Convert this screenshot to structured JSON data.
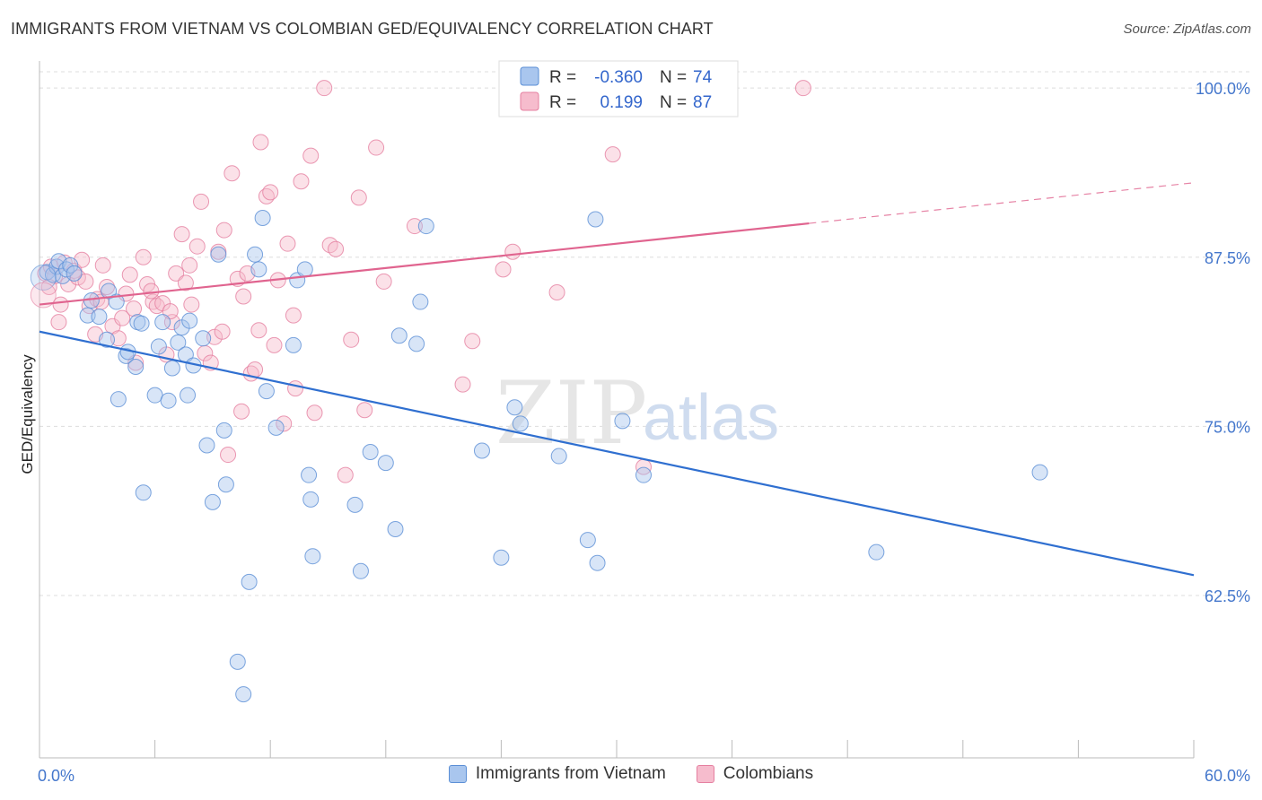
{
  "title": "IMMIGRANTS FROM VIETNAM VS COLOMBIAN GED/EQUIVALENCY CORRELATION CHART",
  "source": "Source: ZipAtlas.com",
  "watermark": {
    "zip": "ZIP",
    "atlas": "atlas"
  },
  "colors": {
    "blue_fill": "#a9c6ee",
    "blue_stroke": "#5b8fd6",
    "blue_line": "#2f6fd0",
    "pink_fill": "#f6bccd",
    "pink_stroke": "#e57fa0",
    "pink_line": "#e0648f",
    "tick_text": "#4477cc",
    "grid": "#dddddd"
  },
  "legend": {
    "r_label": "R =",
    "n_label": "N =",
    "series": [
      {
        "r": "-0.360",
        "n": "74"
      },
      {
        "r": "0.199",
        "n": "87"
      }
    ]
  },
  "chart_data": {
    "type": "scatter",
    "ylabel": "GED/Equivalency",
    "xlim": [
      0,
      60
    ],
    "ylim": [
      50.5,
      102.0
    ],
    "x_tick_labels": [
      {
        "value": 0,
        "label": "0.0%"
      },
      {
        "value": 60,
        "label": "60.0%"
      }
    ],
    "y_tick_labels": [
      {
        "value": 100,
        "label": "100.0%"
      },
      {
        "value": 87.5,
        "label": "87.5%"
      },
      {
        "value": 75,
        "label": "75.0%"
      },
      {
        "value": 62.5,
        "label": "62.5%"
      }
    ],
    "series": [
      {
        "name": "Immigrants from Vietnam",
        "color": "blue",
        "trend": {
          "x0": 0,
          "y0": 82.0,
          "x1": 60,
          "y1": 64.0
        },
        "points": [
          [
            0.4,
            86.4
          ],
          [
            0.7,
            86.2
          ],
          [
            0.9,
            86.8
          ],
          [
            1.0,
            87.2
          ],
          [
            1.2,
            86.1
          ],
          [
            1.4,
            86.6
          ],
          [
            1.6,
            86.9
          ],
          [
            1.8,
            86.3
          ],
          [
            2.5,
            83.2
          ],
          [
            2.7,
            84.3
          ],
          [
            3.1,
            83.1
          ],
          [
            3.5,
            81.4
          ],
          [
            3.6,
            85.0
          ],
          [
            4.0,
            84.2
          ],
          [
            4.1,
            77.0
          ],
          [
            4.5,
            80.2
          ],
          [
            4.6,
            80.5
          ],
          [
            5.0,
            79.4
          ],
          [
            5.1,
            82.7
          ],
          [
            5.3,
            82.6
          ],
          [
            5.4,
            70.1
          ],
          [
            6.0,
            77.3
          ],
          [
            6.2,
            80.9
          ],
          [
            6.4,
            82.7
          ],
          [
            6.7,
            76.9
          ],
          [
            6.9,
            79.3
          ],
          [
            7.2,
            81.2
          ],
          [
            7.4,
            82.3
          ],
          [
            7.6,
            80.3
          ],
          [
            7.7,
            77.3
          ],
          [
            7.8,
            82.8
          ],
          [
            8.0,
            79.5
          ],
          [
            8.5,
            81.5
          ],
          [
            8.7,
            73.6
          ],
          [
            9.0,
            69.4
          ],
          [
            9.3,
            87.7
          ],
          [
            9.6,
            74.7
          ],
          [
            9.7,
            70.7
          ],
          [
            10.3,
            57.6
          ],
          [
            10.6,
            55.2
          ],
          [
            10.9,
            63.5
          ],
          [
            11.2,
            87.7
          ],
          [
            11.4,
            86.6
          ],
          [
            11.6,
            90.4
          ],
          [
            11.8,
            77.6
          ],
          [
            12.3,
            74.9
          ],
          [
            13.2,
            81.0
          ],
          [
            13.4,
            85.8
          ],
          [
            13.8,
            86.6
          ],
          [
            14.0,
            71.4
          ],
          [
            14.1,
            69.6
          ],
          [
            14.2,
            65.4
          ],
          [
            16.4,
            69.2
          ],
          [
            16.7,
            64.3
          ],
          [
            17.2,
            73.1
          ],
          [
            18.0,
            72.3
          ],
          [
            18.5,
            67.4
          ],
          [
            18.7,
            81.7
          ],
          [
            19.6,
            81.1
          ],
          [
            19.8,
            84.2
          ],
          [
            20.1,
            89.8
          ],
          [
            23.0,
            73.2
          ],
          [
            24.0,
            65.3
          ],
          [
            24.7,
            76.4
          ],
          [
            25.0,
            75.2
          ],
          [
            27.0,
            72.8
          ],
          [
            28.1,
            100.0
          ],
          [
            28.5,
            66.6
          ],
          [
            29.0,
            64.9
          ],
          [
            28.9,
            90.3
          ],
          [
            30.3,
            75.4
          ],
          [
            31.4,
            71.4
          ],
          [
            43.5,
            65.7
          ],
          [
            52.0,
            71.6
          ]
        ]
      },
      {
        "name": "Colombians",
        "color": "pink",
        "trend": {
          "x0": 0,
          "y0": 84.0,
          "x1": 40,
          "y1": 90.0,
          "dash_x1": 60,
          "dash_y1": 93.0
        },
        "points": [
          [
            0.3,
            86.3
          ],
          [
            0.6,
            86.8
          ],
          [
            0.8,
            86.1
          ],
          [
            1.0,
            82.7
          ],
          [
            1.3,
            87.1
          ],
          [
            1.5,
            85.5
          ],
          [
            1.8,
            86.5
          ],
          [
            2.0,
            86.0
          ],
          [
            2.2,
            87.3
          ],
          [
            2.6,
            83.9
          ],
          [
            2.9,
            81.8
          ],
          [
            3.0,
            84.4
          ],
          [
            3.3,
            86.9
          ],
          [
            3.5,
            85.3
          ],
          [
            3.8,
            82.4
          ],
          [
            4.1,
            81.5
          ],
          [
            4.3,
            83.0
          ],
          [
            4.5,
            84.8
          ],
          [
            4.7,
            86.2
          ],
          [
            5.0,
            79.7
          ],
          [
            5.4,
            87.5
          ],
          [
            5.6,
            85.5
          ],
          [
            5.9,
            84.2
          ],
          [
            6.1,
            83.9
          ],
          [
            6.4,
            84.1
          ],
          [
            6.6,
            80.3
          ],
          [
            6.9,
            82.7
          ],
          [
            7.1,
            86.3
          ],
          [
            7.4,
            89.2
          ],
          [
            7.6,
            85.6
          ],
          [
            7.9,
            84.0
          ],
          [
            8.2,
            88.3
          ],
          [
            8.4,
            91.6
          ],
          [
            8.6,
            80.4
          ],
          [
            8.9,
            79.7
          ],
          [
            9.1,
            81.6
          ],
          [
            9.3,
            87.9
          ],
          [
            9.6,
            89.5
          ],
          [
            9.8,
            72.9
          ],
          [
            10.0,
            93.7
          ],
          [
            10.3,
            85.9
          ],
          [
            10.5,
            76.1
          ],
          [
            10.8,
            86.3
          ],
          [
            11.0,
            78.9
          ],
          [
            11.4,
            82.1
          ],
          [
            11.5,
            96.0
          ],
          [
            11.8,
            92.0
          ],
          [
            12.0,
            92.3
          ],
          [
            12.4,
            85.8
          ],
          [
            12.7,
            75.2
          ],
          [
            12.9,
            88.5
          ],
          [
            13.2,
            83.2
          ],
          [
            13.3,
            77.8
          ],
          [
            13.6,
            93.1
          ],
          [
            14.1,
            95.0
          ],
          [
            14.3,
            76.0
          ],
          [
            14.8,
            100.0
          ],
          [
            15.1,
            88.4
          ],
          [
            15.4,
            88.1
          ],
          [
            15.9,
            71.4
          ],
          [
            16.2,
            81.4
          ],
          [
            16.6,
            91.9
          ],
          [
            16.9,
            76.2
          ],
          [
            17.5,
            95.6
          ],
          [
            17.9,
            85.7
          ],
          [
            19.5,
            89.8
          ],
          [
            22.0,
            78.1
          ],
          [
            22.5,
            81.3
          ],
          [
            24.1,
            86.6
          ],
          [
            24.6,
            87.9
          ],
          [
            26.9,
            84.9
          ],
          [
            29.8,
            95.1
          ],
          [
            31.4,
            72.0
          ],
          [
            32.6,
            100.0
          ],
          [
            39.7,
            100.0
          ],
          [
            3.2,
            84.2
          ],
          [
            5.8,
            85.0
          ],
          [
            6.8,
            83.5
          ],
          [
            9.5,
            82.0
          ],
          [
            11.2,
            79.2
          ],
          [
            2.4,
            85.7
          ],
          [
            4.9,
            83.7
          ],
          [
            7.8,
            86.9
          ],
          [
            10.6,
            84.6
          ],
          [
            12.2,
            81.0
          ],
          [
            1.1,
            84.0
          ],
          [
            0.5,
            85.3
          ]
        ]
      }
    ],
    "legend_position": "top-center",
    "grid": true
  }
}
